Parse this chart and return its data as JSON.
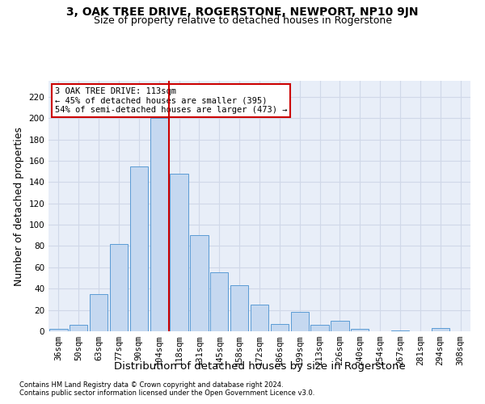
{
  "title": "3, OAK TREE DRIVE, ROGERSTONE, NEWPORT, NP10 9JN",
  "subtitle": "Size of property relative to detached houses in Rogerstone",
  "xlabel": "Distribution of detached houses by size in Rogerstone",
  "ylabel": "Number of detached properties",
  "categories": [
    "36sqm",
    "50sqm",
    "63sqm",
    "77sqm",
    "90sqm",
    "104sqm",
    "118sqm",
    "131sqm",
    "145sqm",
    "158sqm",
    "172sqm",
    "186sqm",
    "199sqm",
    "213sqm",
    "226sqm",
    "240sqm",
    "254sqm",
    "267sqm",
    "281sqm",
    "294sqm",
    "308sqm"
  ],
  "values": [
    2,
    6,
    35,
    82,
    155,
    200,
    148,
    90,
    55,
    43,
    25,
    7,
    18,
    6,
    10,
    2,
    0,
    1,
    0,
    3,
    0
  ],
  "bar_color": "#c5d8f0",
  "bar_edge_color": "#5b9bd5",
  "grid_color": "#d0d8e8",
  "background_color": "#e8eef8",
  "vline_x": 5.5,
  "vline_color": "#cc0000",
  "annotation_text": "3 OAK TREE DRIVE: 113sqm\n← 45% of detached houses are smaller (395)\n54% of semi-detached houses are larger (473) →",
  "annotation_box_color": "#ffffff",
  "annotation_box_edgecolor": "#cc0000",
  "footnote1": "Contains HM Land Registry data © Crown copyright and database right 2024.",
  "footnote2": "Contains public sector information licensed under the Open Government Licence v3.0.",
  "ylim": [
    0,
    235
  ],
  "yticks": [
    0,
    20,
    40,
    60,
    80,
    100,
    120,
    140,
    160,
    180,
    200,
    220
  ],
  "title_fontsize": 10,
  "subtitle_fontsize": 9,
  "axis_label_fontsize": 9,
  "tick_fontsize": 7.5,
  "annotation_fontsize": 7.5,
  "footnote_fontsize": 6
}
